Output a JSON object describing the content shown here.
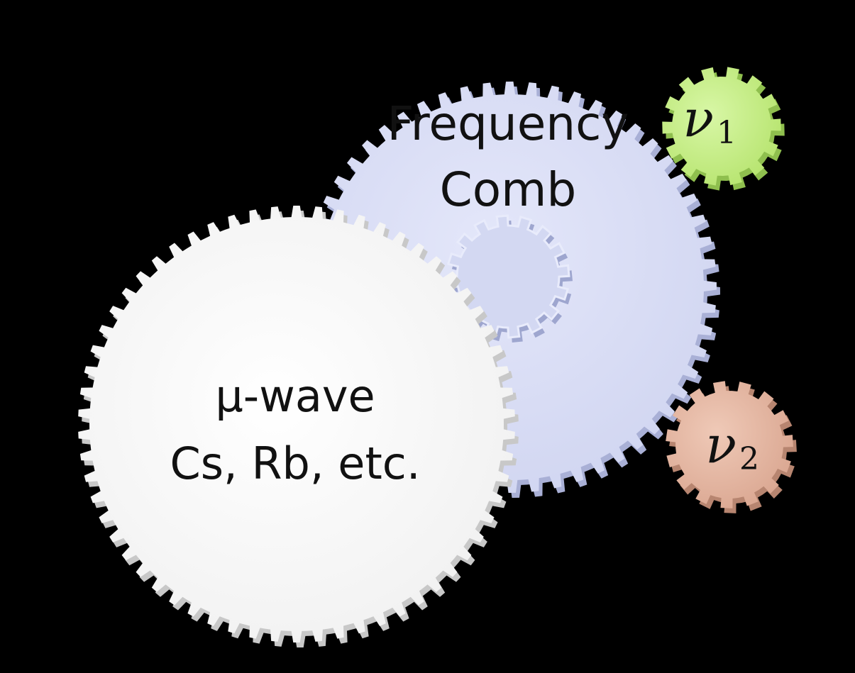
{
  "background_color": "#000000",
  "gears": [
    {
      "id": "frequency-comb",
      "lines": [
        "Frequency",
        "Comb"
      ],
      "color": "#dde1f7",
      "shadow_color": "#a9b0d6"
    },
    {
      "id": "hub",
      "lines": [],
      "color": "#d3d8f2",
      "shadow_color": "#9ea6cf"
    },
    {
      "id": "microwave",
      "lines": [
        "μ-wave",
        "Cs, Rb, etc."
      ],
      "color": "#fafafa",
      "shadow_color": "#c8c8c8"
    },
    {
      "id": "nu1",
      "symbol": "ν",
      "subscript": "1",
      "color": "#c9f28a",
      "shadow_color": "#8fbf4e"
    },
    {
      "id": "nu2",
      "symbol": "ν",
      "subscript": "2",
      "color": "#e5bba7",
      "shadow_color": "#b78570"
    }
  ]
}
